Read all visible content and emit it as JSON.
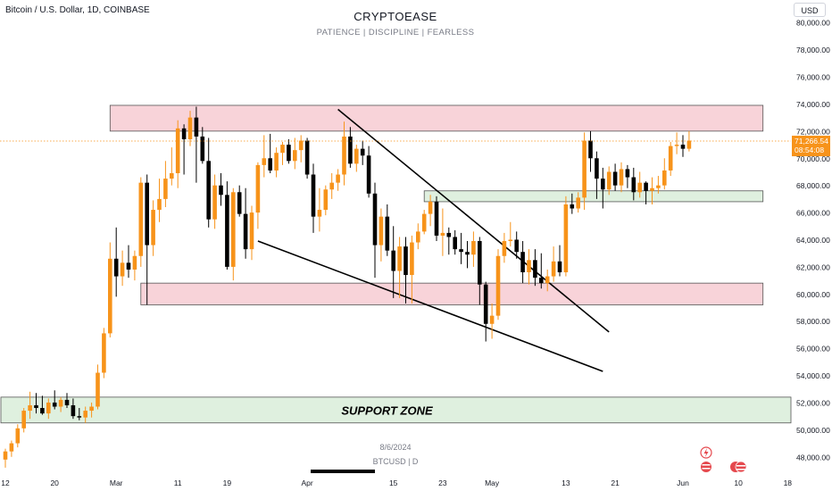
{
  "header": {
    "symbol": "Bitcoin / U.S. Dollar, 1D, COINBASE",
    "title": "CRYPTOEASE",
    "subtitle": "PATIENCE  |  DISCIPLINE  |  FEARLESS",
    "currency": "USD"
  },
  "footer": {
    "date": "8/6/2024",
    "ticker": "BTCUSD  |  D"
  },
  "colors": {
    "up": "#f7931a",
    "down": "#000000",
    "resistance_fill": "#f8d3d9",
    "resistance_stroke": "#555555",
    "support_fill": "#dff0df",
    "price_label_bg": "#f7931a",
    "axis_text": "#131722"
  },
  "chart_data": {
    "type": "candlestick",
    "ylim": [
      46800,
      81200
    ],
    "y_ticks": [
      48000,
      50000,
      52000,
      54000,
      56000,
      58000,
      60000,
      62000,
      64000,
      66000,
      68000,
      70000,
      72000,
      74000,
      76000,
      78000,
      80000
    ],
    "y_tick_labels": [
      "48,000.00",
      "50,000.00",
      "52,000.00",
      "54,000.00",
      "56,000.00",
      "58,000.00",
      "60,000.00",
      "62,000.00",
      "64,000.00",
      "66,000.00",
      "68,000.00",
      "70,000.00",
      "72,000.00",
      "74,000.00",
      "76,000.00",
      "78,000.00",
      "80,000.00"
    ],
    "x_tick_labels": [
      {
        "label": "12",
        "day": 0
      },
      {
        "label": "20",
        "day": 8
      },
      {
        "label": "Mar",
        "day": 18
      },
      {
        "label": "11",
        "day": 28
      },
      {
        "label": "19",
        "day": 36
      },
      {
        "label": "Apr",
        "day": 49
      },
      {
        "label": "15",
        "day": 63
      },
      {
        "label": "23",
        "day": 71
      },
      {
        "label": "May",
        "day": 79
      },
      {
        "label": "13",
        "day": 91
      },
      {
        "label": "21",
        "day": 99
      },
      {
        "label": "Jun",
        "day": 110
      },
      {
        "label": "10",
        "day": 119
      },
      {
        "label": "18",
        "day": 127
      }
    ],
    "last_price": 71266.54,
    "last_price_label": "71,266.54",
    "countdown": "08:54:08",
    "zones": [
      {
        "kind": "resistance",
        "day_start": 17,
        "day_end": 123,
        "low": 72000,
        "high": 73900
      },
      {
        "kind": "resistance",
        "day_start": 22,
        "day_end": 123,
        "low": 59200,
        "high": 60800
      },
      {
        "kind": "support",
        "day_start": 68,
        "day_end": 123,
        "low": 66800,
        "high": 67600
      },
      {
        "kind": "support",
        "day_start": -2,
        "day_end": 130,
        "low": 50500,
        "high": 52400,
        "label": "SUPPORT ZONE"
      }
    ],
    "trendlines": [
      {
        "from": {
          "day": 54,
          "price": 73600
        },
        "to": {
          "day": 98,
          "price": 57200
        }
      },
      {
        "from": {
          "day": 41,
          "price": 63900
        },
        "to": {
          "day": 97,
          "price": 54300
        }
      }
    ],
    "candles": [
      {
        "day": 0,
        "o": 47800,
        "h": 48600,
        "l": 47200,
        "c": 48400
      },
      {
        "day": 1,
        "o": 48400,
        "h": 49200,
        "l": 48000,
        "c": 49000
      },
      {
        "day": 2,
        "o": 49000,
        "h": 50400,
        "l": 48700,
        "c": 50100
      },
      {
        "day": 3,
        "o": 50100,
        "h": 51600,
        "l": 49800,
        "c": 51400
      },
      {
        "day": 4,
        "o": 51400,
        "h": 52800,
        "l": 50800,
        "c": 51800
      },
      {
        "day": 5,
        "o": 51800,
        "h": 52700,
        "l": 51200,
        "c": 51600
      },
      {
        "day": 6,
        "o": 51600,
        "h": 52500,
        "l": 51100,
        "c": 51200
      },
      {
        "day": 7,
        "o": 51200,
        "h": 52300,
        "l": 50800,
        "c": 52000
      },
      {
        "day": 8,
        "o": 52000,
        "h": 52900,
        "l": 51500,
        "c": 51700
      },
      {
        "day": 9,
        "o": 51700,
        "h": 52400,
        "l": 51300,
        "c": 52200
      },
      {
        "day": 10,
        "o": 52200,
        "h": 52700,
        "l": 51600,
        "c": 51800
      },
      {
        "day": 11,
        "o": 51800,
        "h": 52300,
        "l": 50800,
        "c": 51000
      },
      {
        "day": 12,
        "o": 51000,
        "h": 51600,
        "l": 50700,
        "c": 50900
      },
      {
        "day": 13,
        "o": 50900,
        "h": 51700,
        "l": 50500,
        "c": 51400
      },
      {
        "day": 14,
        "o": 51400,
        "h": 52000,
        "l": 50900,
        "c": 51700
      },
      {
        "day": 15,
        "o": 51700,
        "h": 54800,
        "l": 51500,
        "c": 54200
      },
      {
        "day": 16,
        "o": 54200,
        "h": 57500,
        "l": 53800,
        "c": 57100
      },
      {
        "day": 17,
        "o": 57100,
        "h": 63800,
        "l": 56800,
        "c": 62600
      },
      {
        "day": 18,
        "o": 62600,
        "h": 64900,
        "l": 59800,
        "c": 61300
      },
      {
        "day": 19,
        "o": 61300,
        "h": 63200,
        "l": 60600,
        "c": 62300
      },
      {
        "day": 20,
        "o": 62300,
        "h": 63600,
        "l": 61200,
        "c": 61800
      },
      {
        "day": 21,
        "o": 61800,
        "h": 63200,
        "l": 61000,
        "c": 62800
      },
      {
        "day": 22,
        "o": 62800,
        "h": 68600,
        "l": 62000,
        "c": 68200
      },
      {
        "day": 23,
        "o": 68200,
        "h": 68800,
        "l": 59200,
        "c": 63600
      },
      {
        "day": 24,
        "o": 63600,
        "h": 66900,
        "l": 62800,
        "c": 66200
      },
      {
        "day": 25,
        "o": 66200,
        "h": 68500,
        "l": 65300,
        "c": 67000
      },
      {
        "day": 26,
        "o": 67000,
        "h": 69800,
        "l": 66400,
        "c": 68500
      },
      {
        "day": 27,
        "o": 68500,
        "h": 70800,
        "l": 68000,
        "c": 68900
      },
      {
        "day": 28,
        "o": 68900,
        "h": 72800,
        "l": 67800,
        "c": 72200
      },
      {
        "day": 29,
        "o": 72200,
        "h": 72500,
        "l": 68800,
        "c": 71400
      },
      {
        "day": 30,
        "o": 71400,
        "h": 73500,
        "l": 70900,
        "c": 73000
      },
      {
        "day": 31,
        "o": 73000,
        "h": 73800,
        "l": 68200,
        "c": 71600
      },
      {
        "day": 32,
        "o": 71600,
        "h": 72300,
        "l": 69600,
        "c": 69800
      },
      {
        "day": 33,
        "o": 69800,
        "h": 71500,
        "l": 64900,
        "c": 65500
      },
      {
        "day": 34,
        "o": 65500,
        "h": 68800,
        "l": 64800,
        "c": 68000
      },
      {
        "day": 35,
        "o": 68000,
        "h": 68900,
        "l": 66500,
        "c": 67300
      },
      {
        "day": 36,
        "o": 67300,
        "h": 68300,
        "l": 61800,
        "c": 62000
      },
      {
        "day": 37,
        "o": 62000,
        "h": 67800,
        "l": 61000,
        "c": 67500
      },
      {
        "day": 38,
        "o": 67500,
        "h": 68000,
        "l": 65700,
        "c": 65900
      },
      {
        "day": 39,
        "o": 65900,
        "h": 67800,
        "l": 62600,
        "c": 63300
      },
      {
        "day": 40,
        "o": 63300,
        "h": 66500,
        "l": 62500,
        "c": 66000
      },
      {
        "day": 41,
        "o": 66000,
        "h": 69700,
        "l": 64800,
        "c": 69500
      },
      {
        "day": 42,
        "o": 69500,
        "h": 71700,
        "l": 68600,
        "c": 70000
      },
      {
        "day": 43,
        "o": 70000,
        "h": 71800,
        "l": 68900,
        "c": 69100
      },
      {
        "day": 44,
        "o": 69100,
        "h": 70800,
        "l": 68600,
        "c": 70400
      },
      {
        "day": 45,
        "o": 70400,
        "h": 71200,
        "l": 69500,
        "c": 71000
      },
      {
        "day": 46,
        "o": 71000,
        "h": 71400,
        "l": 69600,
        "c": 69800
      },
      {
        "day": 47,
        "o": 69800,
        "h": 71500,
        "l": 69200,
        "c": 70600
      },
      {
        "day": 48,
        "o": 70600,
        "h": 71700,
        "l": 69700,
        "c": 71300
      },
      {
        "day": 49,
        "o": 71300,
        "h": 71500,
        "l": 68500,
        "c": 68800
      },
      {
        "day": 50,
        "o": 68800,
        "h": 69600,
        "l": 64500,
        "c": 65700
      },
      {
        "day": 51,
        "o": 65700,
        "h": 67800,
        "l": 64600,
        "c": 66200
      },
      {
        "day": 52,
        "o": 66200,
        "h": 68000,
        "l": 65800,
        "c": 67700
      },
      {
        "day": 53,
        "o": 67700,
        "h": 68900,
        "l": 67000,
        "c": 68200
      },
      {
        "day": 54,
        "o": 68200,
        "h": 69200,
        "l": 67600,
        "c": 68800
      },
      {
        "day": 55,
        "o": 68800,
        "h": 72700,
        "l": 68000,
        "c": 71600
      },
      {
        "day": 56,
        "o": 71600,
        "h": 72300,
        "l": 69300,
        "c": 69600
      },
      {
        "day": 57,
        "o": 69600,
        "h": 71000,
        "l": 69000,
        "c": 70700
      },
      {
        "day": 58,
        "o": 70700,
        "h": 71300,
        "l": 69500,
        "c": 70200
      },
      {
        "day": 59,
        "o": 70200,
        "h": 70900,
        "l": 67100,
        "c": 67400
      },
      {
        "day": 60,
        "o": 67400,
        "h": 68200,
        "l": 61200,
        "c": 63600
      },
      {
        "day": 61,
        "o": 63600,
        "h": 66300,
        "l": 62400,
        "c": 65700
      },
      {
        "day": 62,
        "o": 65700,
        "h": 66600,
        "l": 62800,
        "c": 63200
      },
      {
        "day": 63,
        "o": 63200,
        "h": 65000,
        "l": 59700,
        "c": 61700
      },
      {
        "day": 64,
        "o": 61700,
        "h": 64200,
        "l": 59700,
        "c": 63500
      },
      {
        "day": 65,
        "o": 63500,
        "h": 64200,
        "l": 59300,
        "c": 61400
      },
      {
        "day": 66,
        "o": 61400,
        "h": 64300,
        "l": 59300,
        "c": 63800
      },
      {
        "day": 67,
        "o": 63800,
        "h": 65200,
        "l": 63300,
        "c": 64600
      },
      {
        "day": 68,
        "o": 64600,
        "h": 66200,
        "l": 64400,
        "c": 65900
      },
      {
        "day": 69,
        "o": 65900,
        "h": 67300,
        "l": 65000,
        "c": 66800
      },
      {
        "day": 70,
        "o": 66800,
        "h": 67200,
        "l": 63900,
        "c": 64300
      },
      {
        "day": 71,
        "o": 64300,
        "h": 66300,
        "l": 62800,
        "c": 64500
      },
      {
        "day": 72,
        "o": 64500,
        "h": 64900,
        "l": 62900,
        "c": 64200
      },
      {
        "day": 73,
        "o": 64200,
        "h": 64700,
        "l": 62900,
        "c": 63300
      },
      {
        "day": 74,
        "o": 63300,
        "h": 64500,
        "l": 62200,
        "c": 63100
      },
      {
        "day": 75,
        "o": 63100,
        "h": 63900,
        "l": 61900,
        "c": 62900
      },
      {
        "day": 76,
        "o": 62900,
        "h": 64600,
        "l": 62000,
        "c": 63900
      },
      {
        "day": 77,
        "o": 63900,
        "h": 64200,
        "l": 59200,
        "c": 60700
      },
      {
        "day": 78,
        "o": 60700,
        "h": 60900,
        "l": 56500,
        "c": 57800
      },
      {
        "day": 79,
        "o": 57800,
        "h": 59300,
        "l": 56700,
        "c": 58400
      },
      {
        "day": 80,
        "o": 58400,
        "h": 63300,
        "l": 58100,
        "c": 62800
      },
      {
        "day": 81,
        "o": 62800,
        "h": 64500,
        "l": 62300,
        "c": 63900
      },
      {
        "day": 82,
        "o": 63900,
        "h": 65300,
        "l": 63500,
        "c": 64000
      },
      {
        "day": 83,
        "o": 64000,
        "h": 64600,
        "l": 62600,
        "c": 63100
      },
      {
        "day": 84,
        "o": 63100,
        "h": 63900,
        "l": 60800,
        "c": 61600
      },
      {
        "day": 85,
        "o": 61600,
        "h": 63300,
        "l": 60700,
        "c": 62500
      },
      {
        "day": 86,
        "o": 62500,
        "h": 63300,
        "l": 60600,
        "c": 61200
      },
      {
        "day": 87,
        "o": 61200,
        "h": 63000,
        "l": 60400,
        "c": 60800
      },
      {
        "day": 88,
        "o": 60800,
        "h": 61800,
        "l": 60200,
        "c": 61300
      },
      {
        "day": 89,
        "o": 61300,
        "h": 63500,
        "l": 60900,
        "c": 62400
      },
      {
        "day": 90,
        "o": 62400,
        "h": 63600,
        "l": 61300,
        "c": 61600
      },
      {
        "day": 91,
        "o": 61600,
        "h": 67200,
        "l": 61300,
        "c": 66600
      },
      {
        "day": 92,
        "o": 66600,
        "h": 67400,
        "l": 65900,
        "c": 66300
      },
      {
        "day": 93,
        "o": 66300,
        "h": 67500,
        "l": 66000,
        "c": 67100
      },
      {
        "day": 94,
        "o": 67100,
        "h": 71900,
        "l": 66200,
        "c": 71300
      },
      {
        "day": 95,
        "o": 71300,
        "h": 72000,
        "l": 69000,
        "c": 70000
      },
      {
        "day": 96,
        "o": 70000,
        "h": 70500,
        "l": 67000,
        "c": 68500
      },
      {
        "day": 97,
        "o": 68500,
        "h": 69300,
        "l": 66300,
        "c": 67700
      },
      {
        "day": 98,
        "o": 67700,
        "h": 69400,
        "l": 67300,
        "c": 69000
      },
      {
        "day": 99,
        "o": 69000,
        "h": 69600,
        "l": 67600,
        "c": 68000
      },
      {
        "day": 100,
        "o": 68000,
        "h": 69700,
        "l": 67500,
        "c": 69200
      },
      {
        "day": 101,
        "o": 69200,
        "h": 69500,
        "l": 67800,
        "c": 68600
      },
      {
        "day": 102,
        "o": 68600,
        "h": 69300,
        "l": 66900,
        "c": 67500
      },
      {
        "day": 103,
        "o": 67500,
        "h": 69000,
        "l": 67100,
        "c": 68200
      },
      {
        "day": 104,
        "o": 68200,
        "h": 68300,
        "l": 66600,
        "c": 67600
      },
      {
        "day": 105,
        "o": 67600,
        "h": 68600,
        "l": 66600,
        "c": 67800
      },
      {
        "day": 106,
        "o": 67800,
        "h": 68700,
        "l": 67400,
        "c": 68000
      },
      {
        "day": 107,
        "o": 68000,
        "h": 70000,
        "l": 67700,
        "c": 69100
      },
      {
        "day": 108,
        "o": 69100,
        "h": 71200,
        "l": 68700,
        "c": 70900
      },
      {
        "day": 109,
        "o": 70900,
        "h": 71900,
        "l": 70300,
        "c": 71000
      },
      {
        "day": 110,
        "o": 71000,
        "h": 71700,
        "l": 70100,
        "c": 70700
      },
      {
        "day": 111,
        "o": 70700,
        "h": 72000,
        "l": 70500,
        "c": 71300
      }
    ]
  }
}
